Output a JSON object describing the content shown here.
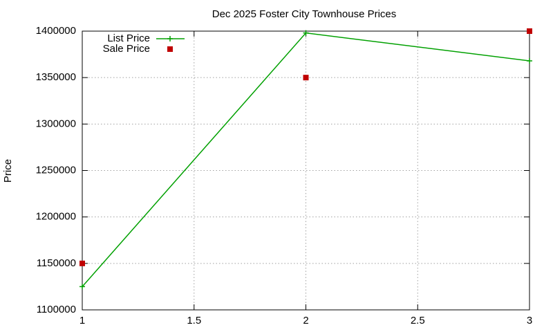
{
  "chart_data": {
    "type": "line",
    "title": "Dec 2025 Foster City Townhouse Prices",
    "ylabel": "Price",
    "x": [
      1,
      2,
      3
    ],
    "series": [
      {
        "name": "List Price",
        "color": "#00a000",
        "style": "linespoints",
        "values": [
          1125000,
          1398000,
          1368000
        ]
      },
      {
        "name": "Sale Price",
        "color": "#c00000",
        "style": "points",
        "values": [
          1150000,
          1350000,
          1400000
        ]
      }
    ],
    "xlim": [
      1,
      3
    ],
    "xticks": [
      1,
      1.5,
      2,
      2.5,
      3
    ],
    "ylim": [
      1100000,
      1400000
    ],
    "yticks": [
      1100000,
      1150000,
      1200000,
      1250000,
      1300000,
      1350000,
      1400000
    ],
    "grid": true,
    "legend": "top-left"
  }
}
